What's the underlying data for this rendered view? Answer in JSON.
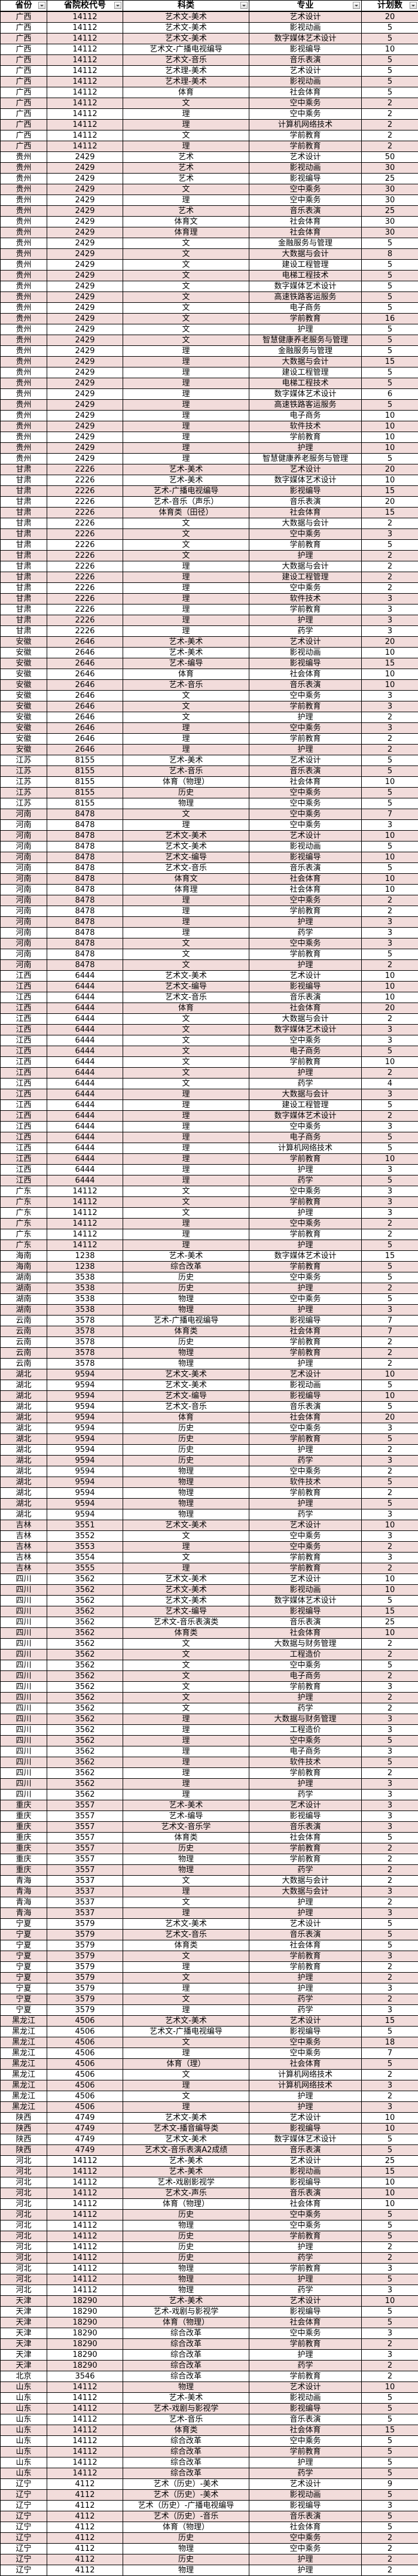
{
  "header": [
    "省份",
    "省院校代号",
    "科类",
    "专业",
    "计划数"
  ],
  "colors": {
    "stripe": "#f2dcdb",
    "white": "#ffffff"
  },
  "rows": [
    [
      "广西",
      "14112",
      "艺术文-美术",
      "艺术设计",
      "20"
    ],
    [
      "广西",
      "14112",
      "艺术文-美术",
      "影视动画",
      "5"
    ],
    [
      "广西",
      "14112",
      "艺术文-美术",
      "数字媒体艺术设计",
      "5"
    ],
    [
      "广西",
      "14112",
      "艺术文-广播电视编导",
      "影视编导",
      "10"
    ],
    [
      "广西",
      "14112",
      "艺术文-音乐",
      "音乐表演",
      "5"
    ],
    [
      "广西",
      "14112",
      "艺术理-美术",
      "艺术设计",
      "5"
    ],
    [
      "广西",
      "14112",
      "艺术理-美术",
      "影视动画",
      "5"
    ],
    [
      "广西",
      "14112",
      "体育",
      "社会体育",
      "5"
    ],
    [
      "广西",
      "14112",
      "文",
      "空中乘务",
      "2"
    ],
    [
      "广西",
      "14112",
      "理",
      "空中乘务",
      "2"
    ],
    [
      "广西",
      "14112",
      "理",
      "计算机网络技术",
      "2"
    ],
    [
      "广西",
      "14112",
      "文",
      "学前教育",
      "2"
    ],
    [
      "广西",
      "14112",
      "理",
      "学前教育",
      "2"
    ],
    [
      "贵州",
      "2429",
      "艺术",
      "艺术设计",
      "50"
    ],
    [
      "贵州",
      "2429",
      "艺术",
      "影视动画",
      "30"
    ],
    [
      "贵州",
      "2429",
      "艺术",
      "影视编导",
      "25"
    ],
    [
      "贵州",
      "2429",
      "文",
      "空中乘务",
      "30"
    ],
    [
      "贵州",
      "2429",
      "理",
      "空中乘务",
      "30"
    ],
    [
      "贵州",
      "2429",
      "艺术",
      "音乐表演",
      "25"
    ],
    [
      "贵州",
      "2429",
      "体育文",
      "社会体育",
      "30"
    ],
    [
      "贵州",
      "2429",
      "体育理",
      "社会体育",
      "30"
    ],
    [
      "贵州",
      "2429",
      "文",
      "金融服务与管理",
      "5"
    ],
    [
      "贵州",
      "2429",
      "文",
      "大数据与会计",
      "8"
    ],
    [
      "贵州",
      "2429",
      "文",
      "建设工程管理",
      "5"
    ],
    [
      "贵州",
      "2429",
      "文",
      "电梯工程技术",
      "5"
    ],
    [
      "贵州",
      "2429",
      "文",
      "数字媒体艺术设计",
      "5"
    ],
    [
      "贵州",
      "2429",
      "文",
      "高速铁路客运服务",
      "5"
    ],
    [
      "贵州",
      "2429",
      "文",
      "电子商务",
      "5"
    ],
    [
      "贵州",
      "2429",
      "文",
      "学前教育",
      "16"
    ],
    [
      "贵州",
      "2429",
      "文",
      "护理",
      "5"
    ],
    [
      "贵州",
      "2429",
      "文",
      "智慧健康养老服务与管理",
      "5"
    ],
    [
      "贵州",
      "2429",
      "理",
      "金融服务与管理",
      "5"
    ],
    [
      "贵州",
      "2429",
      "理",
      "大数据与会计",
      "15"
    ],
    [
      "贵州",
      "2429",
      "理",
      "建设工程管理",
      "5"
    ],
    [
      "贵州",
      "2429",
      "理",
      "电梯工程技术",
      "5"
    ],
    [
      "贵州",
      "2429",
      "理",
      "数字媒体艺术设计",
      "6"
    ],
    [
      "贵州",
      "2429",
      "理",
      "高速铁路客运服务",
      "5"
    ],
    [
      "贵州",
      "2429",
      "理",
      "电子商务",
      "10"
    ],
    [
      "贵州",
      "2429",
      "理",
      "软件技术",
      "10"
    ],
    [
      "贵州",
      "2429",
      "理",
      "学前教育",
      "10"
    ],
    [
      "贵州",
      "2429",
      "理",
      "护理",
      "10"
    ],
    [
      "贵州",
      "2429",
      "理",
      "智慧健康养老服务与管理",
      "5"
    ],
    [
      "甘肃",
      "2226",
      "艺术-美术",
      "艺术设计",
      "20"
    ],
    [
      "甘肃",
      "2226",
      "艺术-美术",
      "数字媒体艺术设计",
      "10"
    ],
    [
      "甘肃",
      "2226",
      "艺术-广播电视编导",
      "影视编导",
      "15"
    ],
    [
      "甘肃",
      "2226",
      "艺术-音乐（声乐）",
      "音乐表演",
      "20"
    ],
    [
      "甘肃",
      "2226",
      "体育类（田径）",
      "社会体育",
      "15"
    ],
    [
      "甘肃",
      "2226",
      "文",
      "大数据与会计",
      "2"
    ],
    [
      "甘肃",
      "2226",
      "文",
      "空中乘务",
      "3"
    ],
    [
      "甘肃",
      "2226",
      "文",
      "学前教育",
      "5"
    ],
    [
      "甘肃",
      "2226",
      "文",
      "护理",
      "2"
    ],
    [
      "甘肃",
      "2226",
      "理",
      "大数据与会计",
      "2"
    ],
    [
      "甘肃",
      "2226",
      "理",
      "建设工程管理",
      "2"
    ],
    [
      "甘肃",
      "2226",
      "理",
      "空中乘务",
      "2"
    ],
    [
      "甘肃",
      "2226",
      "理",
      "软件技术",
      "3"
    ],
    [
      "甘肃",
      "2226",
      "理",
      "学前教育",
      "3"
    ],
    [
      "甘肃",
      "2226",
      "理",
      "护理",
      "3"
    ],
    [
      "甘肃",
      "2226",
      "理",
      "药学",
      "3"
    ],
    [
      "安徽",
      "2646",
      "艺术-美术",
      "艺术设计",
      "20"
    ],
    [
      "安徽",
      "2646",
      "艺术-美术",
      "影视动画",
      "10"
    ],
    [
      "安徽",
      "2646",
      "艺术-编导",
      "影视编导",
      "15"
    ],
    [
      "安徽",
      "2646",
      "体育",
      "社会体育",
      "10"
    ],
    [
      "安徽",
      "2646",
      "艺术-音乐",
      "音乐表演",
      "10"
    ],
    [
      "安徽",
      "2646",
      "文",
      "空中乘务",
      "3"
    ],
    [
      "安徽",
      "2646",
      "文",
      "学前教育",
      "3"
    ],
    [
      "安徽",
      "2646",
      "文",
      "护理",
      "2"
    ],
    [
      "安徽",
      "2646",
      "理",
      "空中乘务",
      "3"
    ],
    [
      "安徽",
      "2646",
      "理",
      "学前教育",
      "2"
    ],
    [
      "安徽",
      "2646",
      "理",
      "护理",
      "2"
    ],
    [
      "江苏",
      "8155",
      "艺术-美术",
      "艺术设计",
      "5"
    ],
    [
      "江苏",
      "8155",
      "艺术-音乐",
      "音乐表演",
      "5"
    ],
    [
      "江苏",
      "8155",
      "体育（物理）",
      "社会体育",
      "10"
    ],
    [
      "江苏",
      "8155",
      "历史",
      "空中乘务",
      "5"
    ],
    [
      "江苏",
      "8155",
      "物理",
      "空中乘务",
      "5"
    ],
    [
      "河南",
      "8478",
      "文",
      "空中乘务",
      "7"
    ],
    [
      "河南",
      "8478",
      "理",
      "空中乘务",
      "3"
    ],
    [
      "河南",
      "8478",
      "艺术文-美术",
      "艺术设计",
      "10"
    ],
    [
      "河南",
      "8478",
      "艺术文-美术",
      "影视动画",
      "5"
    ],
    [
      "河南",
      "8478",
      "艺术文-编导",
      "影视编导",
      "10"
    ],
    [
      "河南",
      "8478",
      "艺术文-音乐",
      "音乐表演",
      "5"
    ],
    [
      "河南",
      "8478",
      "体育文",
      "社会体育",
      "10"
    ],
    [
      "河南",
      "8478",
      "体育理",
      "社会体育",
      "10"
    ],
    [
      "河南",
      "8478",
      "理",
      "空中乘务",
      "2"
    ],
    [
      "河南",
      "8478",
      "理",
      "学前教育",
      "2"
    ],
    [
      "河南",
      "8478",
      "理",
      "护理",
      "3"
    ],
    [
      "河南",
      "8478",
      "理",
      "药学",
      "3"
    ],
    [
      "河南",
      "8478",
      "文",
      "空中乘务",
      "3"
    ],
    [
      "河南",
      "8478",
      "文",
      "学前教育",
      "5"
    ],
    [
      "河南",
      "8478",
      "文",
      "护理",
      "2"
    ],
    [
      "江西",
      "6444",
      "艺术文-美术",
      "艺术设计",
      "10"
    ],
    [
      "江西",
      "6444",
      "艺术文-编导",
      "影视编导",
      "10"
    ],
    [
      "江西",
      "6444",
      "艺术文-音乐",
      "音乐表演",
      "10"
    ],
    [
      "江西",
      "6444",
      "体育",
      "社会体育",
      "20"
    ],
    [
      "江西",
      "6444",
      "文",
      "大数据与会计",
      "2"
    ],
    [
      "江西",
      "6444",
      "文",
      "数字媒体艺术设计",
      "3"
    ],
    [
      "江西",
      "6444",
      "文",
      "空中乘务",
      "3"
    ],
    [
      "江西",
      "6444",
      "文",
      "电子商务",
      "5"
    ],
    [
      "江西",
      "6444",
      "文",
      "学前教育",
      "10"
    ],
    [
      "江西",
      "6444",
      "文",
      "护理",
      "2"
    ],
    [
      "江西",
      "6444",
      "文",
      "药学",
      "4"
    ],
    [
      "江西",
      "6444",
      "理",
      "大数据与会计",
      "3"
    ],
    [
      "江西",
      "6444",
      "理",
      "建设工程管理",
      "5"
    ],
    [
      "江西",
      "6444",
      "理",
      "数字媒体艺术设计",
      "2"
    ],
    [
      "江西",
      "6444",
      "理",
      "空中乘务",
      "3"
    ],
    [
      "江西",
      "6444",
      "理",
      "电子商务",
      "5"
    ],
    [
      "江西",
      "6444",
      "理",
      "计算机网络技术",
      "5"
    ],
    [
      "江西",
      "6444",
      "理",
      "学前教育",
      "10"
    ],
    [
      "江西",
      "6444",
      "理",
      "护理",
      "3"
    ],
    [
      "江西",
      "6444",
      "理",
      "药学",
      "5"
    ],
    [
      "广东",
      "14112",
      "文",
      "空中乘务",
      "3"
    ],
    [
      "广东",
      "14112",
      "文",
      "学前教育",
      "3"
    ],
    [
      "广东",
      "14112",
      "文",
      "护理",
      "3"
    ],
    [
      "广东",
      "14112",
      "理",
      "空中乘务",
      "2"
    ],
    [
      "广东",
      "14112",
      "理",
      "学前教育",
      "2"
    ],
    [
      "广东",
      "14112",
      "理",
      "护理",
      "5"
    ],
    [
      "海南",
      "1238",
      "艺术-美术",
      "数字媒体艺术设计",
      "15"
    ],
    [
      "海南",
      "1238",
      "综合改革",
      "学前教育",
      "5"
    ],
    [
      "湖南",
      "3538",
      "历史",
      "空中乘务",
      "5"
    ],
    [
      "湖南",
      "3538",
      "历史",
      "护理",
      "2"
    ],
    [
      "湖南",
      "3538",
      "物理",
      "空中乘务",
      "5"
    ],
    [
      "湖南",
      "3538",
      "物理",
      "护理",
      "3"
    ],
    [
      "云南",
      "3578",
      "艺术-广播电视编导",
      "影视编导",
      "7"
    ],
    [
      "云南",
      "3578",
      "体育类",
      "社会体育",
      "7"
    ],
    [
      "云南",
      "3578",
      "历史",
      "学前教育",
      "2"
    ],
    [
      "云南",
      "3578",
      "物理",
      "学前教育",
      "2"
    ],
    [
      "云南",
      "3578",
      "物理",
      "护理",
      "2"
    ],
    [
      "湖北",
      "9594",
      "艺术文-美术",
      "艺术设计",
      "10"
    ],
    [
      "湖北",
      "9594",
      "艺术文-美术",
      "影视动画",
      "5"
    ],
    [
      "湖北",
      "9594",
      "艺术文-编导",
      "影视编导",
      "10"
    ],
    [
      "湖北",
      "9594",
      "艺术文-音乐",
      "音乐表演",
      "5"
    ],
    [
      "湖北",
      "9594",
      "体育",
      "社会体育",
      "20"
    ],
    [
      "湖北",
      "9594",
      "历史",
      "空中乘务",
      "3"
    ],
    [
      "湖北",
      "9594",
      "历史",
      "学前教育",
      "5"
    ],
    [
      "湖北",
      "9594",
      "历史",
      "护理",
      "2"
    ],
    [
      "湖北",
      "9594",
      "历史",
      "药学",
      "3"
    ],
    [
      "湖北",
      "9594",
      "物理",
      "空中乘务",
      "2"
    ],
    [
      "湖北",
      "9594",
      "物理",
      "软件技术",
      "5"
    ],
    [
      "湖北",
      "9594",
      "物理",
      "学前教育",
      "2"
    ],
    [
      "湖北",
      "9594",
      "物理",
      "护理",
      "5"
    ],
    [
      "湖北",
      "9594",
      "物理",
      "药学",
      "3"
    ],
    [
      "吉林",
      "3551",
      "艺术文-美术",
      "艺术设计",
      "10"
    ],
    [
      "吉林",
      "3552",
      "文",
      "空中乘务",
      "3"
    ],
    [
      "吉林",
      "3553",
      "理",
      "空中乘务",
      "2"
    ],
    [
      "吉林",
      "3554",
      "文",
      "学前教育",
      "3"
    ],
    [
      "吉林",
      "3555",
      "理",
      "学前教育",
      "2"
    ],
    [
      "四川",
      "3562",
      "艺术文-美术",
      "艺术设计",
      "10"
    ],
    [
      "四川",
      "3562",
      "艺术文-美术",
      "影视动画",
      "10"
    ],
    [
      "四川",
      "3562",
      "艺术文-美术",
      "数字媒体艺术设计",
      "5"
    ],
    [
      "四川",
      "3562",
      "艺术文-编导",
      "影视编导",
      "15"
    ],
    [
      "四川",
      "3562",
      "艺术文-音乐表演类",
      "音乐表演",
      "25"
    ],
    [
      "四川",
      "3562",
      "体育类",
      "社会体育",
      "10"
    ],
    [
      "四川",
      "3562",
      "文",
      "大数据与财务管理",
      "2"
    ],
    [
      "四川",
      "3562",
      "文",
      "工程造价",
      "2"
    ],
    [
      "四川",
      "3562",
      "文",
      "空中乘务",
      "5"
    ],
    [
      "四川",
      "3562",
      "文",
      "电子商务",
      "2"
    ],
    [
      "四川",
      "3562",
      "文",
      "学前教育",
      "3"
    ],
    [
      "四川",
      "3562",
      "文",
      "护理",
      "2"
    ],
    [
      "四川",
      "3562",
      "文",
      "药学",
      "2"
    ],
    [
      "四川",
      "3562",
      "理",
      "大数据与财务管理",
      "3"
    ],
    [
      "四川",
      "3562",
      "理",
      "工程造价",
      "3"
    ],
    [
      "四川",
      "3562",
      "理",
      "空中乘务",
      "5"
    ],
    [
      "四川",
      "3562",
      "理",
      "电子商务",
      "3"
    ],
    [
      "四川",
      "3562",
      "理",
      "软件技术",
      "5"
    ],
    [
      "四川",
      "3562",
      "理",
      "学前教育",
      "2"
    ],
    [
      "四川",
      "3562",
      "理",
      "护理",
      "3"
    ],
    [
      "四川",
      "3562",
      "理",
      "药学",
      "3"
    ],
    [
      "重庆",
      "3557",
      "艺术-美术",
      "艺术设计",
      "3"
    ],
    [
      "重庆",
      "3557",
      "艺术-编导",
      "影视编导",
      "3"
    ],
    [
      "重庆",
      "3557",
      "艺术文-音乐学",
      "音乐表演",
      "3"
    ],
    [
      "重庆",
      "3557",
      "体育类",
      "社会体育",
      "5"
    ],
    [
      "重庆",
      "3557",
      "历史",
      "学前教育",
      "2"
    ],
    [
      "重庆",
      "3557",
      "物理",
      "学前教育",
      "2"
    ],
    [
      "重庆",
      "3557",
      "物理",
      "药学",
      "2"
    ],
    [
      "青海",
      "3537",
      "文",
      "大数据与会计",
      "2"
    ],
    [
      "青海",
      "3537",
      "理",
      "大数据与会计",
      "3"
    ],
    [
      "青海",
      "3537",
      "文",
      "护理",
      "2"
    ],
    [
      "青海",
      "3537",
      "理",
      "护理",
      "3"
    ],
    [
      "宁夏",
      "3579",
      "艺术文-美术",
      "艺术设计",
      "5"
    ],
    [
      "宁夏",
      "3579",
      "艺术文-音乐",
      "音乐表演",
      "5"
    ],
    [
      "宁夏",
      "3579",
      "体育类",
      "社会体育",
      "5"
    ],
    [
      "宁夏",
      "3579",
      "文",
      "学前教育",
      "3"
    ],
    [
      "宁夏",
      "3579",
      "理",
      "学前教育",
      "2"
    ],
    [
      "宁夏",
      "3579",
      "文",
      "护理",
      "2"
    ],
    [
      "宁夏",
      "3579",
      "理",
      "护理",
      "3"
    ],
    [
      "宁夏",
      "3579",
      "文",
      "药学",
      "2"
    ],
    [
      "宁夏",
      "3579",
      "理",
      "药学",
      "3"
    ],
    [
      "黑龙江",
      "4506",
      "艺术文-美术",
      "艺术设计",
      "15"
    ],
    [
      "黑龙江",
      "4506",
      "艺术文-广播电视编导",
      "影视编导",
      "5"
    ],
    [
      "黑龙江",
      "4506",
      "文",
      "空中乘务",
      "18"
    ],
    [
      "黑龙江",
      "4506",
      "理",
      "空中乘务",
      "7"
    ],
    [
      "黑龙江",
      "4506",
      "体育（理）",
      "社会体育",
      "5"
    ],
    [
      "黑龙江",
      "4506",
      "文",
      "计算机网络技术",
      "2"
    ],
    [
      "黑龙江",
      "4506",
      "理",
      "计算机网络技术",
      "3"
    ],
    [
      "黑龙江",
      "4506",
      "文",
      "护理",
      "2"
    ],
    [
      "黑龙江",
      "4506",
      "理",
      "护理",
      "3"
    ],
    [
      "陕西",
      "4749",
      "艺术文-美术",
      "艺术设计",
      "10"
    ],
    [
      "陕西",
      "4749",
      "艺术文-播音编导类",
      "影视编导",
      "10"
    ],
    [
      "陕西",
      "4749",
      "艺术文-美术",
      "数字媒体艺术设计",
      "5"
    ],
    [
      "陕西",
      "4749",
      "艺术文-音乐表演A2成绩",
      "音乐表演",
      "5"
    ],
    [
      "河北",
      "14112",
      "艺术-美术",
      "艺术设计",
      "25"
    ],
    [
      "河北",
      "14112",
      "艺术-美术",
      "影视动画",
      "15"
    ],
    [
      "河北",
      "14112",
      "艺术-戏剧影视学",
      "影视编导",
      "10"
    ],
    [
      "河北",
      "14112",
      "艺术文-声乐",
      "音乐表演",
      "10"
    ],
    [
      "河北",
      "14112",
      "体育（物理）",
      "社会体育",
      "10"
    ],
    [
      "河北",
      "14112",
      "历史",
      "空中乘务",
      "5"
    ],
    [
      "河北",
      "14112",
      "物理",
      "空中乘务",
      "5"
    ],
    [
      "河北",
      "14112",
      "历史",
      "学前教育",
      "5"
    ],
    [
      "河北",
      "14112",
      "历史",
      "护理",
      "2"
    ],
    [
      "河北",
      "14112",
      "历史",
      "药学",
      "2"
    ],
    [
      "河北",
      "14112",
      "物理",
      "学前教育",
      "3"
    ],
    [
      "河北",
      "14112",
      "物理",
      "护理",
      "5"
    ],
    [
      "河北",
      "14112",
      "物理",
      "药学",
      "3"
    ],
    [
      "天津",
      "18290",
      "艺术-美术",
      "艺术设计",
      "10"
    ],
    [
      "天津",
      "18290",
      "艺术-戏剧与影视学",
      "影视编导",
      "5"
    ],
    [
      "天津",
      "18290",
      "体育（物理）",
      "社会体育",
      "5"
    ],
    [
      "天津",
      "18290",
      "综合改革",
      "空中乘务",
      "3"
    ],
    [
      "天津",
      "18290",
      "综合改革",
      "学前教育",
      "2"
    ],
    [
      "天津",
      "18290",
      "综合改革",
      "护理",
      "3"
    ],
    [
      "天津",
      "18290",
      "综合改革",
      "药学",
      "2"
    ],
    [
      "北京",
      "3546",
      "综合改革",
      "学前教育",
      "2"
    ],
    [
      "山东",
      "14112",
      "物理",
      "艺术设计",
      "10"
    ],
    [
      "山东",
      "14112",
      "艺术-美术",
      "影视动画",
      "5"
    ],
    [
      "山东",
      "14112",
      "艺术-戏剧与影视学",
      "影视编导",
      "5"
    ],
    [
      "山东",
      "14112",
      "艺术-音乐",
      "音乐表演",
      "5"
    ],
    [
      "山东",
      "14112",
      "体育类",
      "社会体育",
      "15"
    ],
    [
      "山东",
      "14112",
      "综合改革",
      "空中乘务",
      "5"
    ],
    [
      "山东",
      "14112",
      "综合改革",
      "学前教育",
      "5"
    ],
    [
      "山东",
      "14112",
      "综合改革",
      "护理",
      "5"
    ],
    [
      "山东",
      "14112",
      "综合改革",
      "药学",
      "5"
    ],
    [
      "辽宁",
      "4112",
      "艺术（历史）-美术",
      "艺术设计",
      "9"
    ],
    [
      "辽宁",
      "4112",
      "艺术（历史）-美术",
      "影视动画",
      "5"
    ],
    [
      "辽宁",
      "4112",
      "艺术（历史）-广播电视编导",
      "影视编导",
      "3"
    ],
    [
      "辽宁",
      "4112",
      "艺术（历史）-音乐",
      "音乐表演",
      "5"
    ],
    [
      "辽宁",
      "4112",
      "体育（物理）",
      "社会体育",
      "5"
    ],
    [
      "辽宁",
      "4112",
      "历史",
      "空中乘务",
      "2"
    ],
    [
      "辽宁",
      "4112",
      "物理",
      "空中乘务",
      "2"
    ],
    [
      "辽宁",
      "4112",
      "历史",
      "护理",
      "2"
    ],
    [
      "辽宁",
      "4112",
      "物理",
      "护理",
      "2"
    ]
  ]
}
